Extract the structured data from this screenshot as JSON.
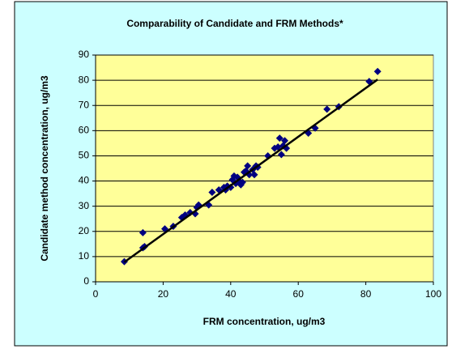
{
  "chart_data": {
    "type": "scatter",
    "title": "Comparability of Candidate and FRM Methods*",
    "x_label": "FRM concentration, ug/m3",
    "y_label": "Candidate method concentration, ug/m3",
    "series": [
      {
        "color": "#000080",
        "x": [
          8.5,
          14,
          14,
          14.5,
          20.5,
          23,
          25.5,
          26.5,
          28,
          29.5,
          30,
          30.5,
          33.5,
          34.5,
          36.5,
          38,
          38.5,
          39,
          40,
          40.5,
          41,
          41.5,
          42,
          42.5,
          43,
          43.5,
          44,
          44.5,
          45,
          45.5,
          46.5,
          47,
          47.5,
          48,
          51,
          53,
          54,
          54.5,
          55,
          55.5,
          56,
          56.5,
          63,
          65,
          68.5,
          72,
          81,
          83.5
        ],
        "values": [
          8,
          19.5,
          13.5,
          14,
          21,
          22,
          25.5,
          26.5,
          27.5,
          27,
          29.5,
          30.5,
          30.5,
          35.5,
          36.5,
          37.5,
          36.5,
          38,
          37.5,
          40.5,
          42,
          39,
          41.5,
          40,
          38.5,
          39.5,
          43.5,
          44,
          46,
          42.5,
          44.5,
          42.5,
          46,
          45.5,
          50,
          53,
          53.5,
          57,
          50.5,
          54,
          56,
          53,
          59,
          61,
          68.5,
          69.5,
          79.5,
          83.5
        ]
      }
    ],
    "trendline": {
      "x": [
        8.5,
        83.5
      ],
      "values": [
        7.8,
        80.3
      ]
    },
    "xlim": [
      0,
      100
    ],
    "xticks": [
      0,
      20,
      40,
      60,
      80,
      100
    ],
    "ylim": [
      0,
      90
    ],
    "yticks": [
      0,
      10,
      20,
      30,
      40,
      50,
      60,
      70,
      80,
      90
    ],
    "grid": true
  }
}
